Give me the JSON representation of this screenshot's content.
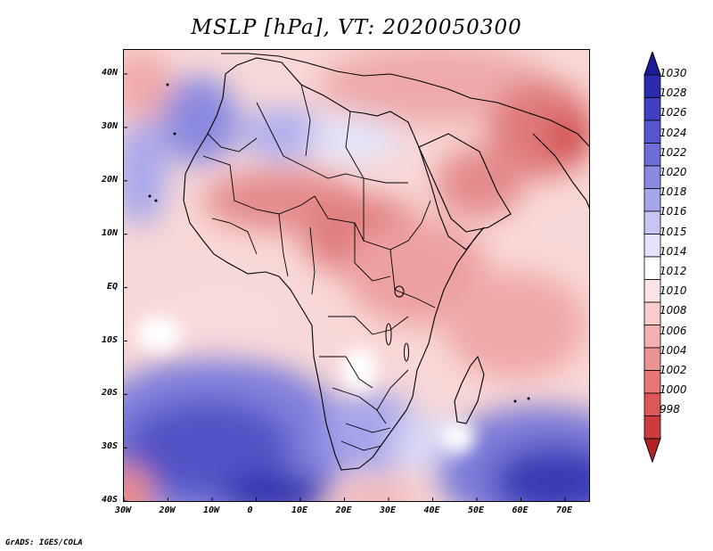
{
  "title": "MSLP [hPa], VT: 2020050300",
  "credit": "GrADS: IGES/COLA",
  "x_ticks": [
    "30W",
    "20W",
    "10W",
    "0",
    "10E",
    "20E",
    "30E",
    "40E",
    "50E",
    "60E",
    "70E"
  ],
  "y_ticks": [
    "40N",
    "30N",
    "20N",
    "10N",
    "EQ",
    "10S",
    "20S",
    "30S",
    "40S"
  ],
  "legend": {
    "levels": [
      "1030",
      "1028",
      "1026",
      "1024",
      "1022",
      "1020",
      "1018",
      "1016",
      "1015",
      "1014",
      "1012",
      "1010",
      "1008",
      "1006",
      "1004",
      "1002",
      "1000",
      "998"
    ],
    "colors": [
      "#1c1c96",
      "#2b2bb0",
      "#4040c4",
      "#5656d0",
      "#6e6ed8",
      "#8a8ae2",
      "#a6a6ec",
      "#c6c6f4",
      "#e2e2fa",
      "#ffffff",
      "#fce4e4",
      "#f9cccc",
      "#f2b0b0",
      "#ec9494",
      "#e67676",
      "#dc5858",
      "#cc3c3c",
      "#b22222"
    ]
  },
  "map": {
    "region": "Africa",
    "lon_range": [
      -30,
      75
    ],
    "lat_range": [
      -40,
      45
    ],
    "field": "MSLP"
  }
}
